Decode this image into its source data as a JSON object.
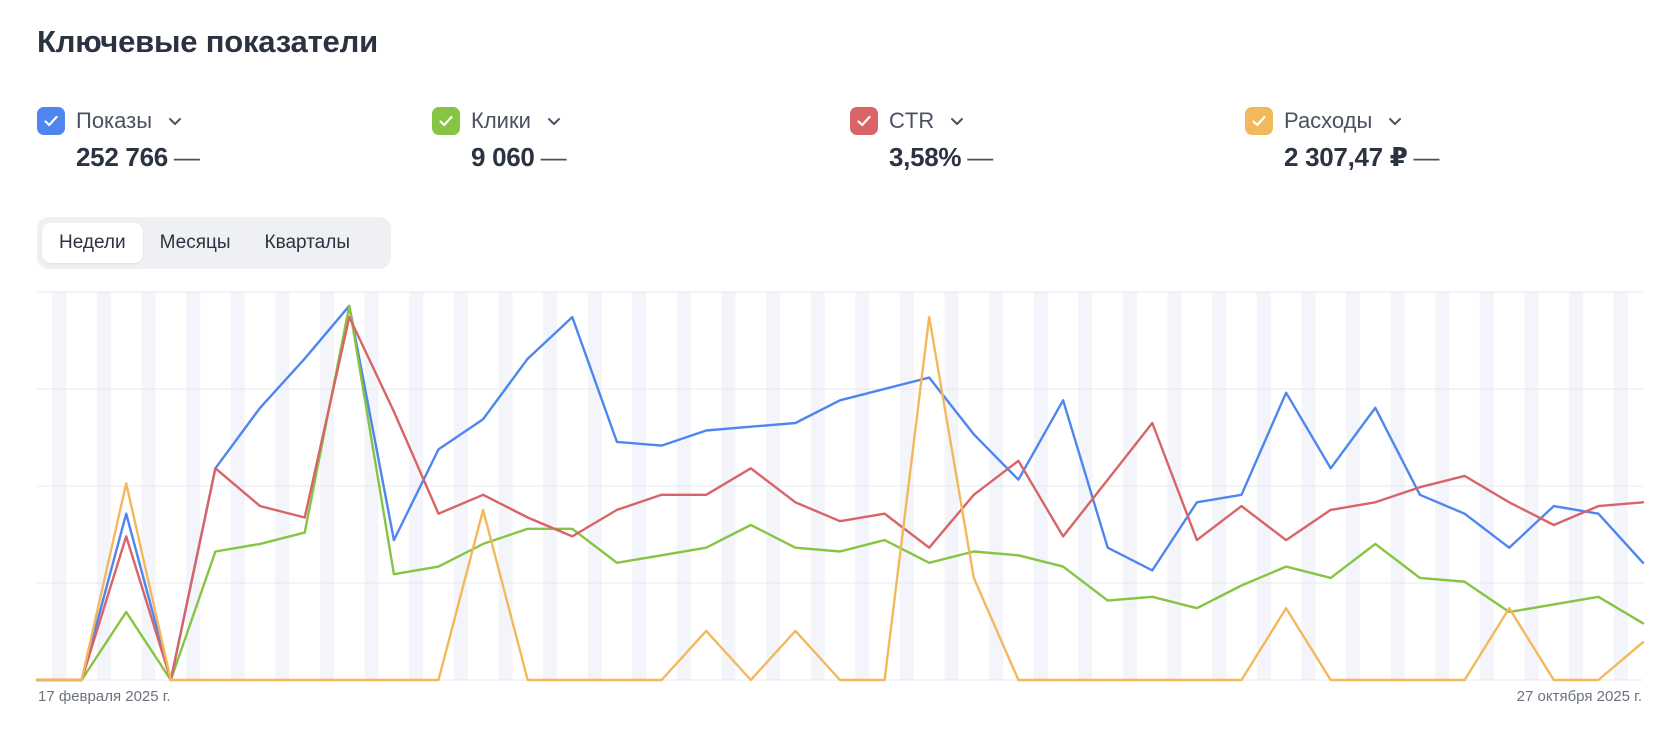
{
  "title": "Ключевые показатели",
  "metrics": [
    {
      "label": "Показы",
      "value": "252 766",
      "dash": "—",
      "color": "#4e86ef",
      "checked": true
    },
    {
      "label": "Клики",
      "value": "9 060",
      "dash": "—",
      "color": "#86c442",
      "checked": true
    },
    {
      "label": "CTR",
      "value": "3,58%",
      "dash": "—",
      "color": "#d96468",
      "checked": true
    },
    {
      "label": "Расходы",
      "value": "2 307,47 ₽",
      "dash": "—",
      "color": "#f4b85c",
      "checked": true
    }
  ],
  "periods": {
    "tabs": [
      "Недели",
      "Месяцы",
      "Кварталы"
    ],
    "active": 0
  },
  "chart_data": {
    "type": "line",
    "x_start_label": "17 февраля 2025 г.",
    "x_end_label": "27 октября 2025 г.",
    "ylim": [
      0,
      100
    ],
    "grid": true,
    "series": [
      {
        "name": "Показы",
        "color": "#4e86ef",
        "values": [
          0,
          0,
          44,
          0,
          56,
          72,
          85,
          99,
          37,
          61,
          69,
          85,
          96,
          63,
          62,
          66,
          67,
          68,
          74,
          77,
          80,
          65,
          53,
          74,
          35,
          29,
          47,
          49,
          76,
          56,
          72,
          49,
          44,
          35,
          46,
          44,
          31
        ]
      },
      {
        "name": "Клики",
        "color": "#86c442",
        "values": [
          0,
          0,
          18,
          0,
          34,
          36,
          39,
          99,
          28,
          30,
          36,
          40,
          40,
          31,
          33,
          35,
          41,
          35,
          34,
          37,
          31,
          34,
          33,
          30,
          21,
          22,
          19,
          25,
          30,
          27,
          36,
          27,
          26,
          18,
          20,
          22,
          15
        ]
      },
      {
        "name": "CTR",
        "color": "#d96468",
        "values": [
          0,
          0,
          38,
          0,
          56,
          46,
          43,
          96,
          71,
          44,
          49,
          43,
          38,
          45,
          49,
          49,
          56,
          47,
          42,
          44,
          35,
          49,
          58,
          38,
          53,
          68,
          37,
          46,
          37,
          45,
          47,
          51,
          54,
          47,
          41,
          46,
          47
        ]
      },
      {
        "name": "Расходы",
        "color": "#f4b85c",
        "values": [
          0,
          0,
          52,
          0,
          0,
          0,
          0,
          0,
          0,
          0,
          45,
          0,
          0,
          0,
          0,
          13,
          0,
          13,
          0,
          0,
          96,
          27,
          0,
          0,
          0,
          0,
          0,
          0,
          19,
          0,
          0,
          0,
          0,
          19,
          0,
          0,
          10
        ]
      }
    ]
  }
}
